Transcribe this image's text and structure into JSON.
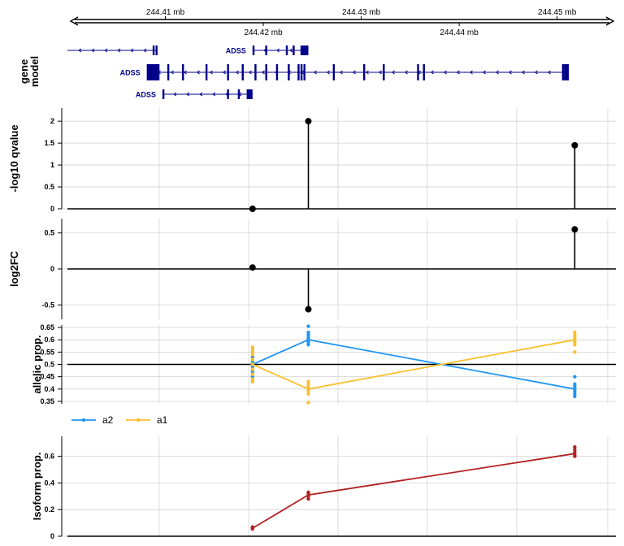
{
  "chart_data": [
    {
      "type": "gene-track",
      "ylabel": [
        "gene",
        "model"
      ],
      "axis": {
        "xlim": [
          244.4,
          244.456
        ],
        "unit": "mb",
        "ticks_upper": [
          {
            "value": 244.41,
            "label": "244.41 mb"
          },
          {
            "value": 244.43,
            "label": "244.43 mb"
          },
          {
            "value": 244.45,
            "label": "244.45 mb"
          }
        ],
        "ticks_lower": [
          {
            "value": 244.42,
            "label": "244.42 mb"
          },
          {
            "value": 244.44,
            "label": "244.44 mb"
          }
        ]
      },
      "transcripts": [
        {
          "start": 244.4,
          "end": 244.4091,
          "label": "",
          "exons": [
            [
              244.4087,
              244.4089
            ],
            [
              244.409,
              244.4092
            ]
          ]
        },
        {
          "start": 244.4189,
          "end": 244.4246,
          "label": "ADSS",
          "exons": [
            [
              244.4189,
              244.4191
            ],
            [
              244.4202,
              244.4204
            ],
            [
              244.4223,
              244.4225
            ],
            [
              244.423,
              244.4232
            ],
            [
              244.4238,
              244.4246
            ]
          ]
        },
        {
          "start": 244.4081,
          "end": 244.4509,
          "label": "ADSS",
          "exons": [
            [
              244.4081,
              244.4094
            ],
            [
              244.4102,
              244.4104
            ],
            [
              244.4117,
              244.4119
            ],
            [
              244.4141,
              244.4143
            ],
            [
              244.4163,
              244.4165
            ],
            [
              244.4178,
              244.418
            ],
            [
              244.4191,
              244.4193
            ],
            [
              244.4202,
              244.4204
            ],
            [
              244.4213,
              244.4215
            ],
            [
              244.4225,
              244.4227
            ],
            [
              244.4235,
              244.4237
            ],
            [
              244.4238,
              244.424
            ],
            [
              244.4241,
              244.4243
            ],
            [
              244.4271,
              244.4273
            ],
            [
              244.4302,
              244.4304
            ],
            [
              244.4322,
              244.4324
            ],
            [
              244.4357,
              244.4359
            ],
            [
              244.4363,
              244.4365
            ],
            [
              244.4505,
              244.4507
            ],
            [
              244.4507,
              244.4512
            ]
          ]
        },
        {
          "start": 244.4097,
          "end": 244.4189,
          "label": "ADSS",
          "exons": [
            [
              244.4097,
              244.4099
            ],
            [
              244.4163,
              244.4165
            ],
            [
              244.4174,
              244.4176
            ],
            [
              244.4183,
              244.4189
            ]
          ]
        }
      ]
    },
    {
      "type": "lollipop",
      "ylabel": "-log10 qvalue",
      "ylim": [
        0,
        2.3
      ],
      "yticks": [
        0,
        0.5,
        1,
        1.5,
        2
      ],
      "baseline": 0,
      "points": [
        {
          "x": 244.4189,
          "y": 0
        },
        {
          "x": 244.4246,
          "y": 2
        },
        {
          "x": 244.4518,
          "y": 1.45
        }
      ]
    },
    {
      "type": "lollipop",
      "ylabel": "log2FC",
      "ylim": [
        -0.7,
        0.7
      ],
      "yticks": [
        -0.5,
        0,
        0.5
      ],
      "baseline": 0,
      "points": [
        {
          "x": 244.4189,
          "y": 0.02
        },
        {
          "x": 244.4246,
          "y": -0.56
        },
        {
          "x": 244.4518,
          "y": 0.55
        }
      ]
    },
    {
      "type": "line",
      "ylabel": "allelic prop.",
      "ylim": [
        0.34,
        0.66
      ],
      "yticks": [
        0.35,
        0.4,
        0.45,
        0.5,
        0.55,
        0.6,
        0.65
      ],
      "reference_line": 0.5,
      "x": [
        244.4189,
        244.4246,
        244.4518
      ],
      "series": [
        {
          "name": "a2",
          "color": "#2196F3",
          "values": [
            0.5,
            0.6,
            0.4
          ],
          "replicates": [
            [
              0.43,
              0.45,
              0.46,
              0.47,
              0.48,
              0.49,
              0.5,
              0.51,
              0.52,
              0.53,
              0.54,
              0.55
            ],
            [
              0.58,
              0.59,
              0.6,
              0.6,
              0.61,
              0.62,
              0.63,
              0.655
            ],
            [
              0.37,
              0.38,
              0.39,
              0.4,
              0.41,
              0.42,
              0.45
            ]
          ]
        },
        {
          "name": "a1",
          "color": "#FBC02D",
          "values": [
            0.5,
            0.4,
            0.6
          ],
          "replicates": [
            [
              0.43,
              0.44,
              0.46,
              0.48,
              0.5,
              0.52,
              0.54,
              0.55,
              0.56,
              0.57
            ],
            [
              0.345,
              0.38,
              0.39,
              0.4,
              0.41,
              0.42,
              0.43
            ],
            [
              0.55,
              0.58,
              0.59,
              0.6,
              0.61,
              0.62,
              0.63
            ]
          ]
        }
      ],
      "legend": {
        "placement": "bottom-left",
        "entries": [
          "a2",
          "a1"
        ]
      }
    },
    {
      "type": "line",
      "ylabel": "Isoform prop.",
      "ylim": [
        0,
        0.75
      ],
      "yticks": [
        0,
        0.2,
        0.4,
        0.6
      ],
      "x": [
        244.4189,
        244.4246,
        244.4518
      ],
      "series": [
        {
          "name": "",
          "color": "#B22222",
          "values": [
            0.06,
            0.31,
            0.62
          ],
          "replicates": [
            [
              0.055,
              0.06,
              0.065,
              0.07
            ],
            [
              0.28,
              0.3,
              0.32,
              0.33
            ],
            [
              0.6,
              0.61,
              0.63,
              0.65,
              0.67
            ]
          ]
        }
      ]
    }
  ],
  "colors": {
    "gene": "#00008B",
    "grid": "#D3D3D3",
    "axis": "#000000"
  }
}
